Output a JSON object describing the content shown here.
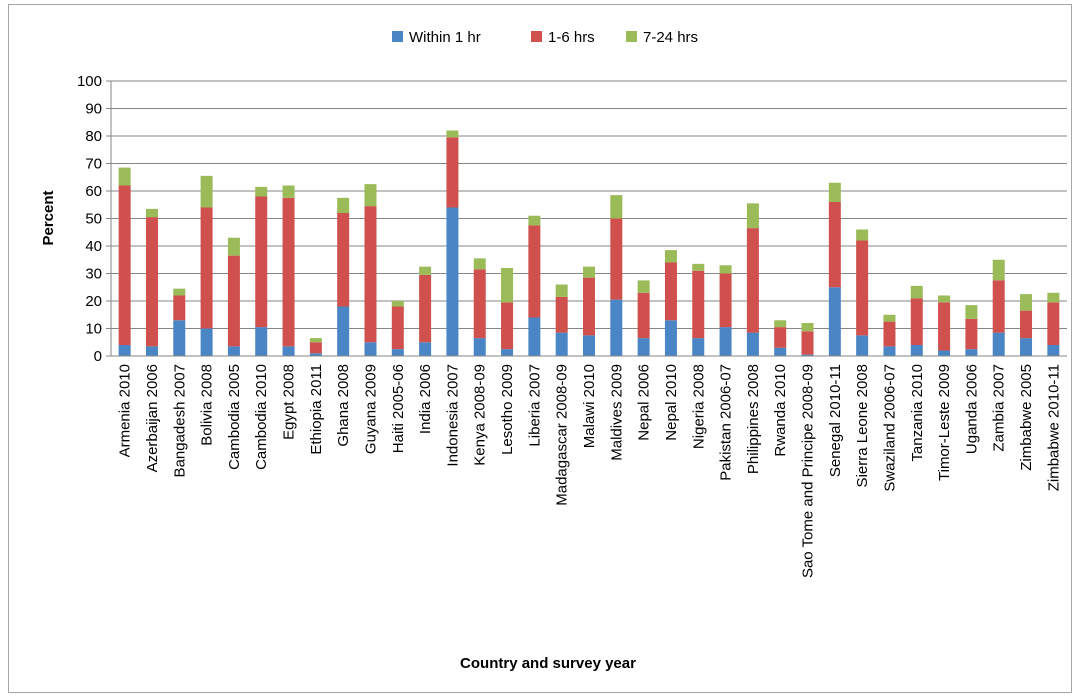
{
  "chart_data": {
    "type": "bar",
    "stacked": true,
    "xlabel": "Country and survey year",
    "ylabel": "Percent",
    "ylim": [
      0,
      100
    ],
    "yticks": [
      0,
      10,
      20,
      30,
      40,
      50,
      60,
      70,
      80,
      90,
      100
    ],
    "grid": true,
    "legend_position": "top",
    "categories": [
      "Armenia 2010",
      "Azerbaijan 2006",
      "Bangadesh 2007",
      "Bolivia 2008",
      "Cambodia 2005",
      "Cambodia 2010",
      "Egypt 2008",
      "Ethiopia 2011",
      "Ghana 2008",
      "Guyana 2009",
      "Haiti 2005-06",
      "India 2006",
      "Indonesia 2007",
      "Kenya 2008-09",
      "Lesotho 2009",
      "Liberia 2007",
      "Madagascar 2008-09",
      "Malawi 2010",
      "Maldives 2009",
      "Nepal 2006",
      "Nepal 2010",
      "Nigeria 2008",
      "Pakistan 2006-07",
      "Philippines 2008",
      "Rwanda 2010",
      "Sao Tome and Principe 2008-09",
      "Senegal 2010-11",
      "Sierra Leone 2008",
      "Swaziland 2006-07",
      "Tanzania 2010",
      "Timor-Leste 2009",
      "Uganda 2006",
      "Zambia 2007",
      "Zimbabwe 2005",
      "Zimbabwe 2010-11"
    ],
    "series": [
      {
        "name": "Within 1 hr",
        "color": "#4a86c5",
        "values": [
          4,
          3.5,
          13,
          10,
          3.5,
          10.5,
          3.5,
          1,
          18,
          5,
          2.5,
          5,
          54,
          6.5,
          2.5,
          14,
          8.5,
          7.5,
          20.5,
          6.5,
          13,
          6.5,
          10.5,
          8.5,
          3,
          0.5,
          25,
          7.5,
          3.5,
          4,
          2,
          2.5,
          8.5,
          6.5,
          4
        ]
      },
      {
        "name": "1-6 hrs",
        "color": "#d0504d",
        "values": [
          58,
          47,
          9,
          44,
          33,
          47.5,
          54,
          4,
          34,
          49.5,
          15.5,
          24.5,
          25.5,
          25,
          17,
          33.5,
          13,
          21,
          29.5,
          16.5,
          21,
          24.5,
          19.5,
          38,
          7.5,
          8.5,
          31,
          34.5,
          9,
          17,
          17.5,
          11,
          19,
          10,
          15.5
        ]
      },
      {
        "name": "7-24 hrs",
        "color": "#9bbb59",
        "values": [
          6.5,
          3,
          2.5,
          11.5,
          6.5,
          3.5,
          4.5,
          1.5,
          5.5,
          8,
          2,
          3,
          2.5,
          4,
          12.5,
          3.5,
          4.5,
          4,
          8.5,
          4.5,
          4.5,
          2.5,
          3,
          9,
          2.5,
          3,
          7,
          4,
          2.5,
          4.5,
          2.5,
          5,
          7.5,
          6,
          3.5
        ]
      }
    ]
  }
}
